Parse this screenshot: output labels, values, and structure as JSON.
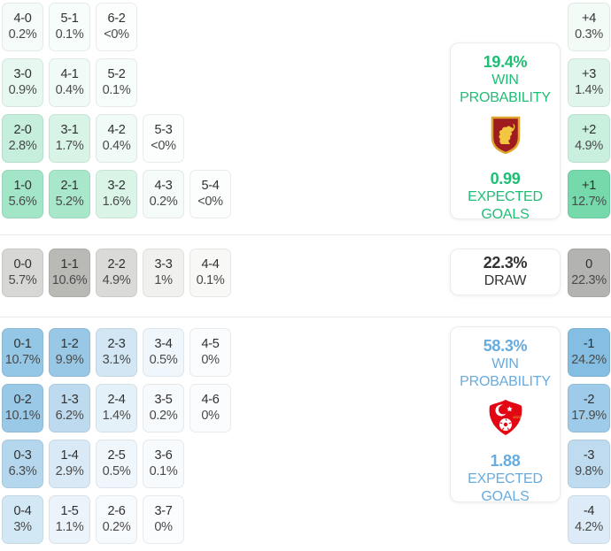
{
  "chart_data": {
    "type": "heatmap",
    "description_of_axes": "correct-score probability matrix with goal-difference column",
    "home": {
      "team_icon": "bulgaria-crest-icon",
      "accent": "#1fbe75",
      "box": {
        "value": "19.4%",
        "label1": "WIN",
        "label2": "PROBABILITY",
        "eg_value": "0.99",
        "eg_label1": "EXPECTED",
        "eg_label2": "GOALS"
      },
      "rows": [
        [
          {
            "score": "4-0",
            "pct": "0.2%",
            "color": "#f4fbf8"
          },
          {
            "score": "5-1",
            "pct": "0.1%",
            "color": "#f7fdfa"
          },
          {
            "score": "6-2",
            "pct": "<0%",
            "color": "#fbfefc"
          }
        ],
        [
          {
            "score": "3-0",
            "pct": "0.9%",
            "color": "#e7f8f0"
          },
          {
            "score": "4-1",
            "pct": "0.4%",
            "color": "#f0faf6"
          },
          {
            "score": "5-2",
            "pct": "0.1%",
            "color": "#f7fdfa"
          }
        ],
        [
          {
            "score": "2-0",
            "pct": "2.8%",
            "color": "#c5efdc"
          },
          {
            "score": "3-1",
            "pct": "1.7%",
            "color": "#d8f4e7"
          },
          {
            "score": "4-2",
            "pct": "0.4%",
            "color": "#f0faf6"
          },
          {
            "score": "5-3",
            "pct": "<0%",
            "color": "#fbfefc"
          }
        ],
        [
          {
            "score": "1-0",
            "pct": "5.6%",
            "color": "#a3e5c7"
          },
          {
            "score": "2-1",
            "pct": "5.2%",
            "color": "#a8e7ca"
          },
          {
            "score": "3-2",
            "pct": "1.6%",
            "color": "#daf5e8"
          },
          {
            "score": "4-3",
            "pct": "0.2%",
            "color": "#f4fbf8"
          },
          {
            "score": "5-4",
            "pct": "<0%",
            "color": "#fbfefc"
          }
        ]
      ],
      "diffs": [
        {
          "label": "+4",
          "pct": "0.3%",
          "color": "#f3fbf7"
        },
        {
          "label": "+3",
          "pct": "1.4%",
          "color": "#e0f6ec"
        },
        {
          "label": "+2",
          "pct": "4.9%",
          "color": "#c9f0de"
        },
        {
          "label": "+1",
          "pct": "12.7%",
          "color": "#76d9ab"
        }
      ]
    },
    "draw": {
      "box": {
        "value": "22.3%",
        "label1": "DRAW"
      },
      "rows": [
        [
          {
            "score": "0-0",
            "pct": "5.7%",
            "color": "#d7d7d5"
          },
          {
            "score": "1-1",
            "pct": "10.6%",
            "color": "#b9bab6"
          },
          {
            "score": "2-2",
            "pct": "4.9%",
            "color": "#dadad8"
          },
          {
            "score": "3-3",
            "pct": "1%",
            "color": "#f0f0ee"
          },
          {
            "score": "4-4",
            "pct": "0.1%",
            "color": "#f8f8f6"
          }
        ]
      ],
      "diffs": [
        {
          "label": "0",
          "pct": "22.3%",
          "color": "#b3b3b1"
        }
      ]
    },
    "away": {
      "team_icon": "turkiye-crest-icon",
      "accent": "#68abde",
      "box": {
        "value": "58.3%",
        "label1": "WIN",
        "label2": "PROBABILITY",
        "eg_value": "1.88",
        "eg_label1": "EXPECTED",
        "eg_label2": "GOALS"
      },
      "rows": [
        [
          {
            "score": "0-1",
            "pct": "10.7%",
            "color": "#94c6e5"
          },
          {
            "score": "1-2",
            "pct": "9.9%",
            "color": "#98c8e6"
          },
          {
            "score": "2-3",
            "pct": "3.1%",
            "color": "#d2e6f4"
          },
          {
            "score": "3-4",
            "pct": "0.5%",
            "color": "#f0f7fc"
          },
          {
            "score": "4-5",
            "pct": "0%",
            "color": "#fafcfe"
          }
        ],
        [
          {
            "score": "0-2",
            "pct": "10.1%",
            "color": "#9ac9e7"
          },
          {
            "score": "1-3",
            "pct": "6.2%",
            "color": "#bddaef"
          },
          {
            "score": "2-4",
            "pct": "1.4%",
            "color": "#e5f1f9"
          },
          {
            "score": "3-5",
            "pct": "0.2%",
            "color": "#f6fafd"
          },
          {
            "score": "4-6",
            "pct": "0%",
            "color": "#fafcfe"
          }
        ],
        [
          {
            "score": "0-3",
            "pct": "6.3%",
            "color": "#b4d7ed"
          },
          {
            "score": "1-4",
            "pct": "2.9%",
            "color": "#d9eaf6"
          },
          {
            "score": "2-5",
            "pct": "0.5%",
            "color": "#f0f7fc"
          },
          {
            "score": "3-6",
            "pct": "0.1%",
            "color": "#f8fbfe"
          }
        ],
        [
          {
            "score": "0-4",
            "pct": "3%",
            "color": "#d3e8f5"
          },
          {
            "score": "1-5",
            "pct": "1.1%",
            "color": "#ebf4fb"
          },
          {
            "score": "2-6",
            "pct": "0.2%",
            "color": "#f6fafd"
          },
          {
            "score": "3-7",
            "pct": "0%",
            "color": "#fafcfe"
          }
        ]
      ],
      "diffs": [
        {
          "label": "-1",
          "pct": "24.2%",
          "color": "#84bfe3"
        },
        {
          "label": "-2",
          "pct": "17.9%",
          "color": "#9dcbe9"
        },
        {
          "label": "-3",
          "pct": "9.8%",
          "color": "#bedbf0"
        },
        {
          "label": "-4",
          "pct": "4.2%",
          "color": "#dcebf7"
        }
      ]
    }
  }
}
